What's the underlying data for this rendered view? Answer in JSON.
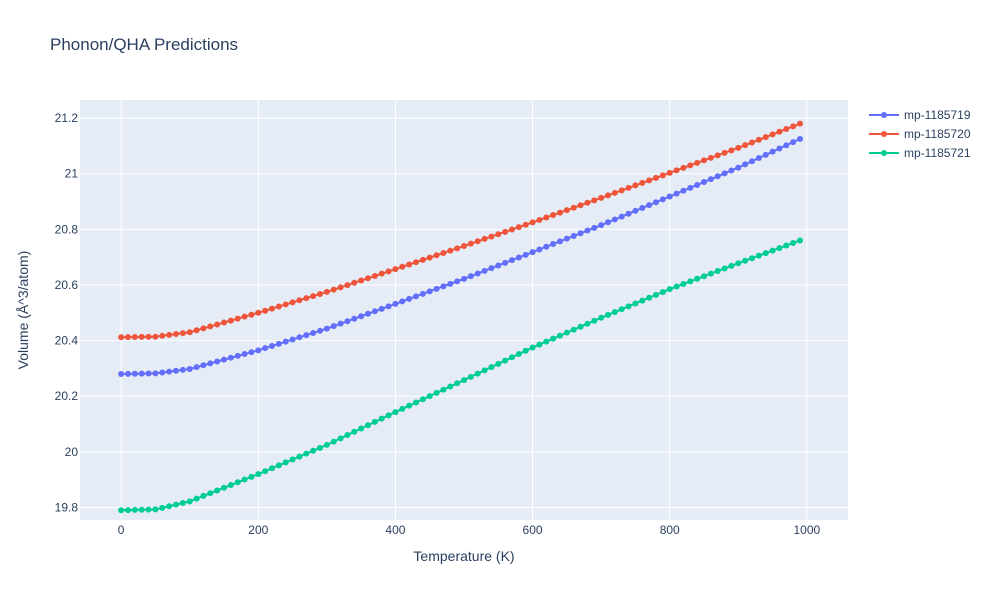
{
  "chart_data": {
    "type": "line",
    "title": "Phonon/QHA Predictions",
    "xlabel": "Temperature (K)",
    "ylabel": "Volume (Å^3/atom)",
    "xlim": [
      -60,
      1060
    ],
    "ylim": [
      19.755,
      21.265
    ],
    "xticks": [
      0,
      200,
      400,
      600,
      800,
      1000
    ],
    "xtick_labels": [
      "0",
      "200",
      "400",
      "600",
      "800",
      "1000"
    ],
    "yticks": [
      19.8,
      20,
      20.2,
      20.4,
      20.6,
      20.8,
      21,
      21.2
    ],
    "ytick_labels": [
      "19.8",
      "20",
      "20.2",
      "20.4",
      "20.6",
      "20.8",
      "21",
      "21.2"
    ],
    "grid": true,
    "legend_position": "top-right, outside plot",
    "x_range": {
      "start": 0,
      "stop": 990,
      "step": 10
    },
    "series": [
      {
        "name": "mp-1185719",
        "color": "#636efa",
        "key_values": [
          [
            0,
            20.28
          ],
          [
            50,
            20.282
          ],
          [
            100,
            20.298
          ],
          [
            200,
            20.365
          ],
          [
            300,
            20.443
          ],
          [
            400,
            20.532
          ],
          [
            500,
            20.622
          ],
          [
            600,
            20.718
          ],
          [
            700,
            20.815
          ],
          [
            800,
            20.918
          ],
          [
            900,
            21.022
          ],
          [
            990,
            21.125
          ]
        ]
      },
      {
        "name": "mp-1185720",
        "color": "#ef553b",
        "key_values": [
          [
            0,
            20.412
          ],
          [
            50,
            20.414
          ],
          [
            100,
            20.43
          ],
          [
            200,
            20.5
          ],
          [
            300,
            20.575
          ],
          [
            400,
            20.657
          ],
          [
            500,
            20.74
          ],
          [
            600,
            20.825
          ],
          [
            700,
            20.913
          ],
          [
            800,
            21.003
          ],
          [
            900,
            21.093
          ],
          [
            990,
            21.18
          ]
        ]
      },
      {
        "name": "mp-1185721",
        "color": "#00cc96",
        "key_values": [
          [
            0,
            19.79
          ],
          [
            50,
            19.793
          ],
          [
            100,
            19.822
          ],
          [
            200,
            19.92
          ],
          [
            300,
            20.025
          ],
          [
            400,
            20.143
          ],
          [
            500,
            20.258
          ],
          [
            600,
            20.375
          ],
          [
            700,
            20.482
          ],
          [
            800,
            20.585
          ],
          [
            900,
            20.678
          ],
          [
            990,
            20.76
          ]
        ]
      }
    ]
  }
}
